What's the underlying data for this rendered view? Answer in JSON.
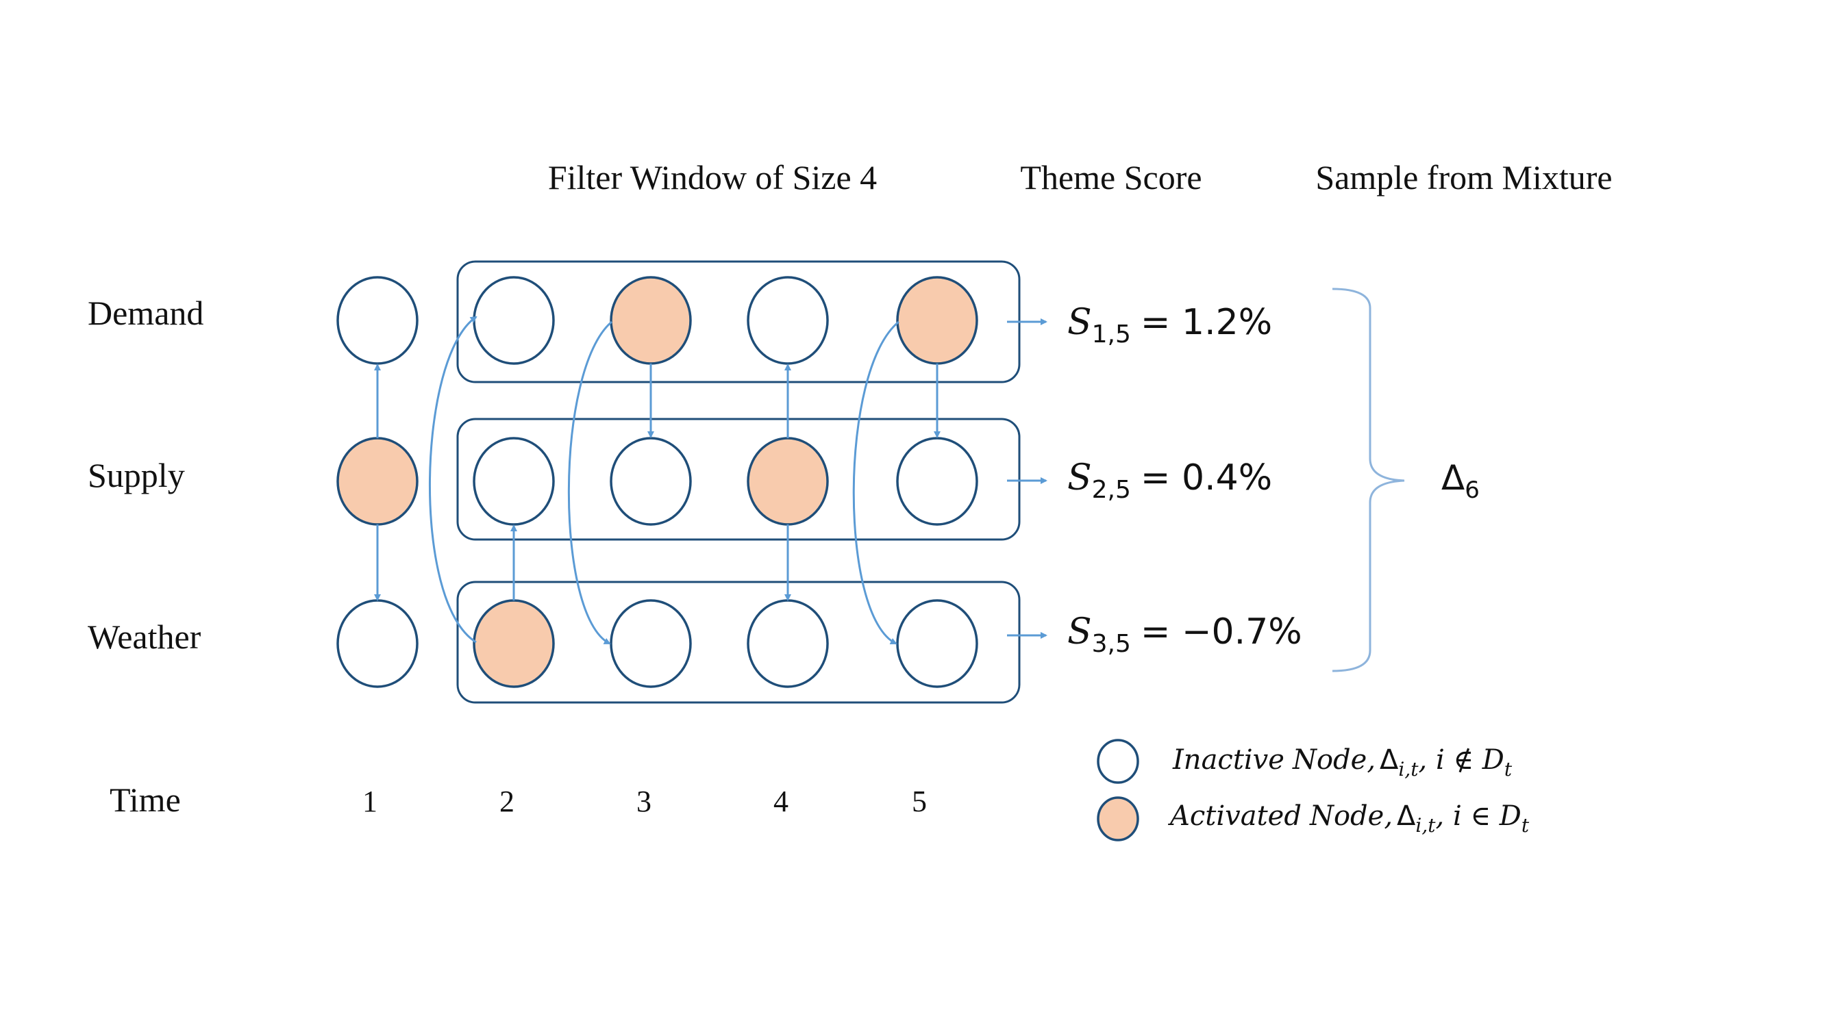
{
  "headers": {
    "filter_window": "Filter Window of  Size 4",
    "theme_score": "Theme Score",
    "sample": "Sample from Mixture"
  },
  "rows": [
    {
      "label": "Demand",
      "active": [
        false,
        false,
        true,
        false,
        true
      ]
    },
    {
      "label": "Supply",
      "active": [
        true,
        false,
        false,
        true,
        false
      ]
    },
    {
      "label": "Weather",
      "active": [
        false,
        true,
        false,
        false,
        false
      ]
    }
  ],
  "time": {
    "label": "Time",
    "steps": [
      "1",
      "2",
      "3",
      "4",
      "5"
    ]
  },
  "scores": [
    {
      "sym": "S",
      "sub": "1,5",
      "value": "= 1.2%"
    },
    {
      "sym": "S",
      "sub": "2,5",
      "value": "= 0.4%"
    },
    {
      "sym": "S",
      "sub": "3,5",
      "value": "= −0.7%"
    }
  ],
  "mixture": {
    "sym": "Δ",
    "sub": "6"
  },
  "legend": {
    "inactive": {
      "word1": "Inactive",
      "word2": "Node,",
      "delta": "Δ",
      "delta_sub": "i,t",
      "tail": ", i ∉ D",
      "tail_sub": "t"
    },
    "activated": {
      "word1": "Activated",
      "word2": "Node,",
      "delta": "Δ",
      "delta_sub": "i,t",
      "tail": ", i ∈ D",
      "tail_sub": "t"
    }
  },
  "colors": {
    "node_stroke": "#1f4e79",
    "active_fill": "#f8cbad",
    "edge": "#5b9bd5",
    "brace": "#8eb4dc"
  }
}
